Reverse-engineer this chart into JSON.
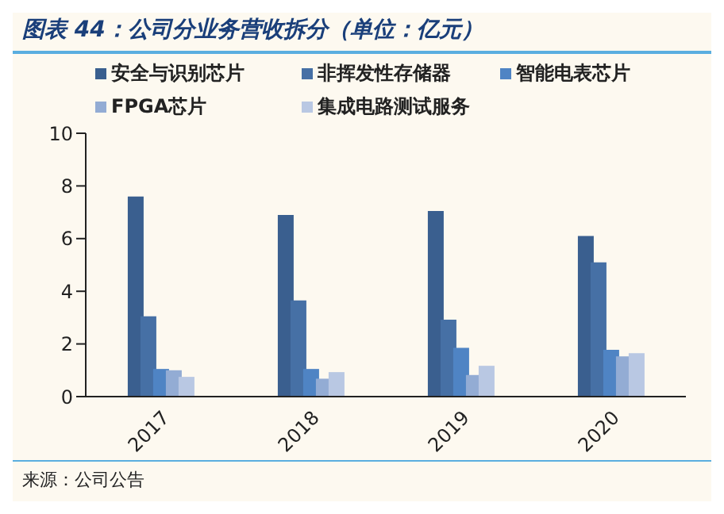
{
  "chart_data": {
    "type": "bar",
    "title": "图表 44：公司分业务营收拆分（单位：亿元）",
    "categories": [
      "2017",
      "2018",
      "2019",
      "2020"
    ],
    "series": [
      {
        "name": "安全与识别芯片",
        "color": "#3a5f8f",
        "values": [
          7.6,
          6.9,
          7.05,
          6.1
        ]
      },
      {
        "name": "非挥发性存储器",
        "color": "#4670a5",
        "values": [
          3.05,
          3.65,
          2.92,
          5.1
        ]
      },
      {
        "name": "智能电表芯片",
        "color": "#4f84c4",
        "values": [
          1.05,
          1.05,
          1.85,
          1.78
        ]
      },
      {
        "name": "FPGA芯片",
        "color": "#93acd4",
        "values": [
          1.0,
          0.68,
          0.82,
          1.53
        ]
      },
      {
        "name": "集成电路测试服务",
        "color": "#b9c8e3",
        "values": [
          0.75,
          0.93,
          1.17,
          1.65
        ]
      }
    ],
    "ylim": [
      0,
      10
    ],
    "yticks": [
      0,
      2,
      4,
      6,
      8,
      10
    ],
    "legend": "top",
    "annotations": [
      "来源：公司公告"
    ]
  }
}
